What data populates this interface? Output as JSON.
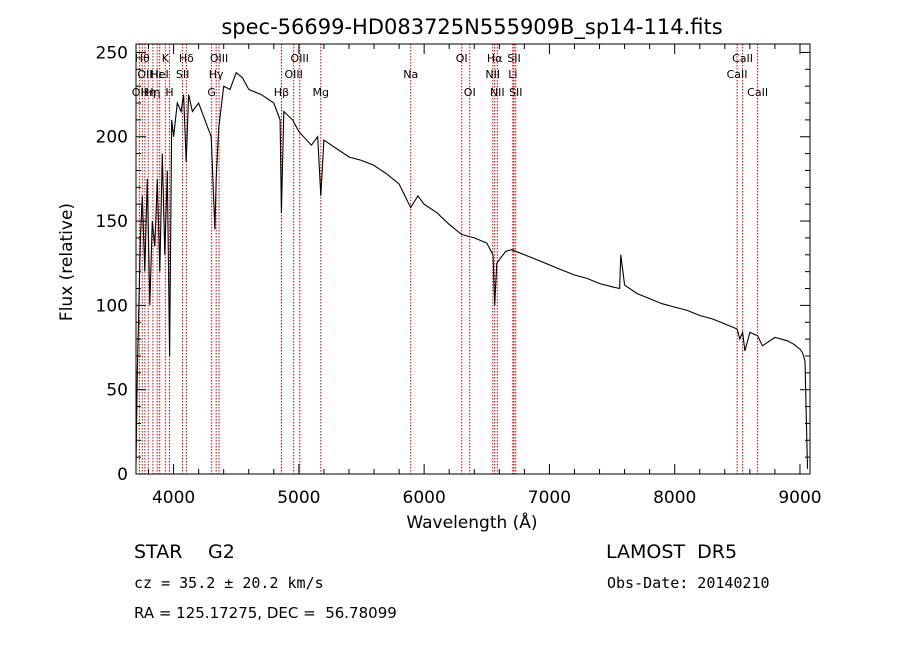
{
  "chart_data": {
    "type": "line",
    "title": "spec-56699-HD083725N555909B_sp14-114.fits",
    "xlabel": "Wavelength (Å)",
    "ylabel": "Flux (relative)",
    "xlim": [
      3700,
      9080
    ],
    "ylim": [
      0,
      255
    ],
    "x_ticks": [
      4000,
      5000,
      6000,
      7000,
      8000,
      9000
    ],
    "y_ticks": [
      0,
      50,
      100,
      150,
      200,
      250
    ],
    "grid": false,
    "line_color": "#000000",
    "marker_color": "#cc0000",
    "series": [
      {
        "x": [
          3700,
          3710,
          3720,
          3735,
          3750,
          3770,
          3790,
          3810,
          3830,
          3850,
          3870,
          3890,
          3910,
          3930,
          3950,
          3968,
          3985,
          4000,
          4030,
          4060,
          4080,
          4101,
          4120,
          4150,
          4200,
          4250,
          4300,
          4330,
          4340,
          4360,
          4400,
          4450,
          4500,
          4550,
          4600,
          4700,
          4800,
          4850,
          4861,
          4880,
          4950,
          5000,
          5100,
          5150,
          5175,
          5200,
          5300,
          5400,
          5500,
          5600,
          5700,
          5800,
          5893,
          5950,
          6000,
          6100,
          6200,
          6300,
          6400,
          6500,
          6550,
          6563,
          6580,
          6650,
          6700,
          6800,
          6900,
          7000,
          7100,
          7200,
          7300,
          7400,
          7500,
          7560,
          7570,
          7600,
          7700,
          7800,
          7900,
          8000,
          8100,
          8200,
          8300,
          8400,
          8498,
          8520,
          8542,
          8560,
          8600,
          8662,
          8700,
          8800,
          8900,
          8950,
          9000,
          9020,
          9040,
          9060
        ],
        "y": [
          5,
          60,
          90,
          140,
          165,
          120,
          175,
          100,
          150,
          135,
          175,
          120,
          190,
          130,
          180,
          70,
          210,
          200,
          220,
          215,
          225,
          185,
          225,
          215,
          220,
          210,
          200,
          145,
          175,
          205,
          230,
          228,
          238,
          235,
          228,
          225,
          220,
          210,
          155,
          215,
          210,
          203,
          195,
          200,
          165,
          198,
          193,
          188,
          186,
          183,
          178,
          172,
          158,
          165,
          160,
          155,
          148,
          142,
          140,
          137,
          130,
          100,
          125,
          132,
          133,
          130,
          127,
          124,
          121,
          118,
          116,
          113,
          111,
          110,
          130,
          112,
          107,
          104,
          101,
          99,
          97,
          94,
          92,
          89,
          86,
          80,
          84,
          73,
          84,
          82,
          76,
          81,
          79,
          77,
          74,
          72,
          67,
          3
        ]
      }
    ],
    "lines": [
      {
        "wl": 3727,
        "label": "OII",
        "row": 2
      },
      {
        "wl": 3750,
        "label": "Hθ",
        "row": 0
      },
      {
        "wl": 3771,
        "label": "OII",
        "row": 1
      },
      {
        "wl": 3798,
        "label": "Hη",
        "row": 2
      },
      {
        "wl": 3835,
        "label": "Hη",
        "row": 2
      },
      {
        "wl": 3869,
        "label": "Hε",
        "row": 1
      },
      {
        "wl": 3889,
        "label": "HeI",
        "row": 1
      },
      {
        "wl": 3934,
        "label": "K",
        "row": 0
      },
      {
        "wl": 3968,
        "label": "H",
        "row": 2
      },
      {
        "wl": 4072,
        "label": "SII",
        "row": 1
      },
      {
        "wl": 4102,
        "label": "Hδ",
        "row": 0
      },
      {
        "wl": 4304,
        "label": "G",
        "row": 2
      },
      {
        "wl": 4340,
        "label": "Hγ",
        "row": 1
      },
      {
        "wl": 4363,
        "label": "OIII",
        "row": 0
      },
      {
        "wl": 4861,
        "label": "Hβ",
        "row": 2
      },
      {
        "wl": 4959,
        "label": "OIII",
        "row": 1
      },
      {
        "wl": 5007,
        "label": "OIII",
        "row": 0
      },
      {
        "wl": 5175,
        "label": "Mg",
        "row": 2
      },
      {
        "wl": 5893,
        "label": "Na",
        "row": 1
      },
      {
        "wl": 6300,
        "label": "OI",
        "row": 0
      },
      {
        "wl": 6364,
        "label": "OI",
        "row": 2
      },
      {
        "wl": 6548,
        "label": "NII",
        "row": 1
      },
      {
        "wl": 6563,
        "label": "Hα",
        "row": 0
      },
      {
        "wl": 6584,
        "label": "NII",
        "row": 2
      },
      {
        "wl": 6708,
        "label": "Li",
        "row": 1
      },
      {
        "wl": 6717,
        "label": "SII",
        "row": 0
      },
      {
        "wl": 6731,
        "label": "SII",
        "row": 2
      },
      {
        "wl": 8498,
        "label": "CaII",
        "row": 1
      },
      {
        "wl": 8542,
        "label": "CaII",
        "row": 0
      },
      {
        "wl": 8662,
        "label": "CaII",
        "row": 2
      }
    ]
  },
  "info": {
    "object_class": "STAR",
    "subclass": "G2",
    "survey": "LAMOST  DR5",
    "cz": "cz = 35.2 ± 20.2 km/s",
    "obs_date": "Obs-Date: 20140210",
    "coords": "RA = 125.17275, DEC =  56.78099"
  }
}
